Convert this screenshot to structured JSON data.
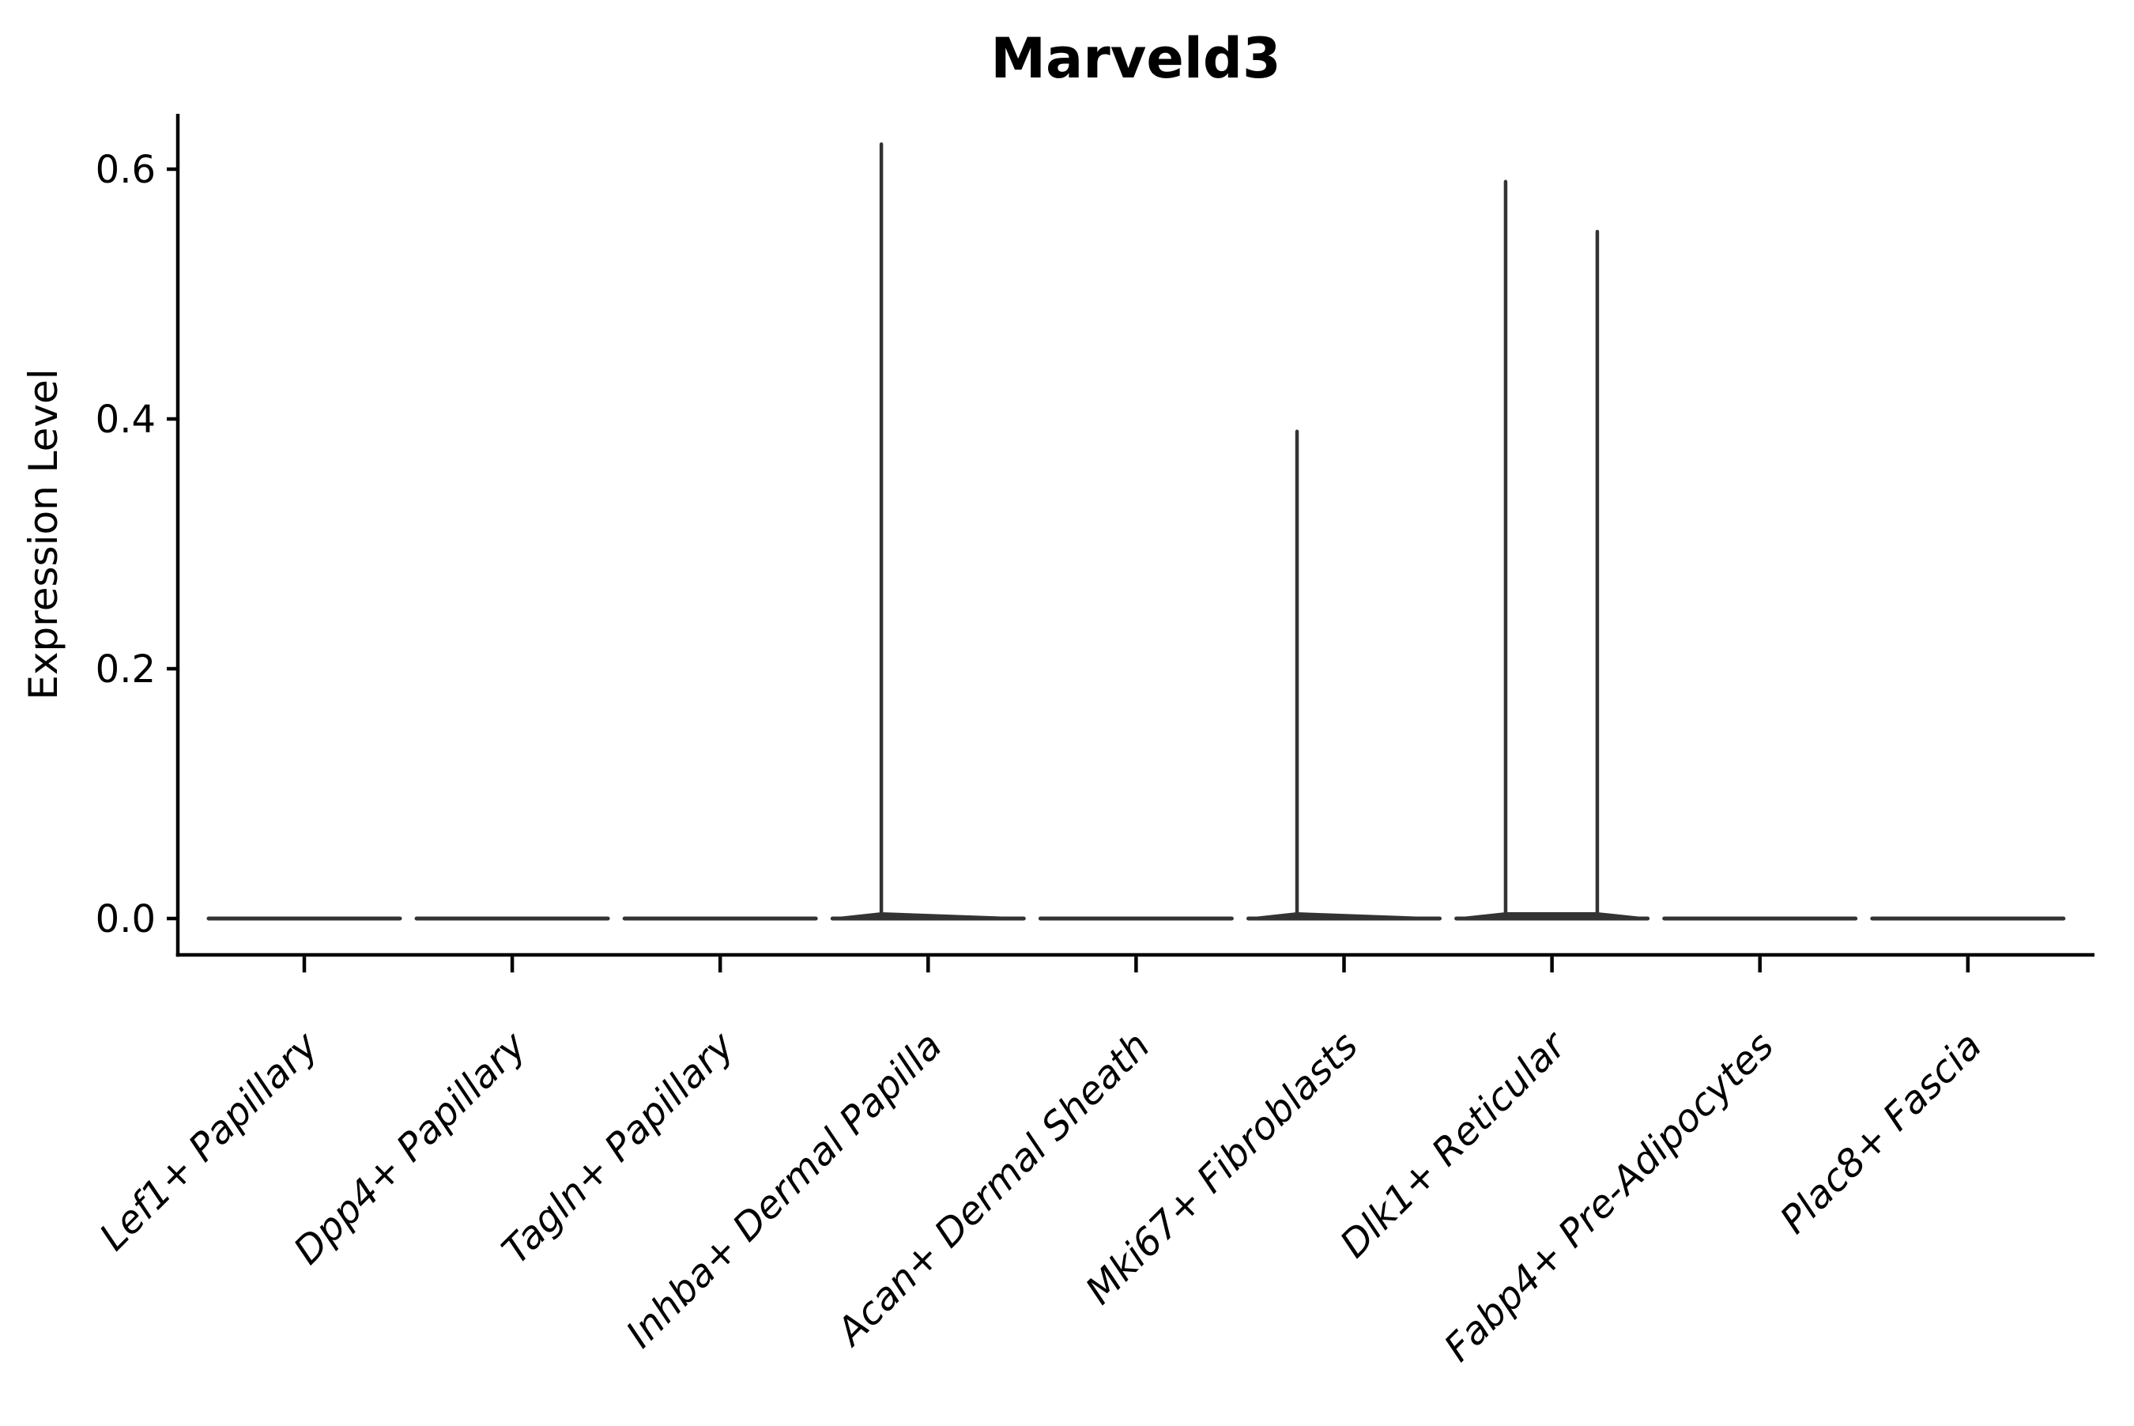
{
  "title": "Marveld3",
  "axes": {
    "ylabel": "Expression Level",
    "xlabel": ""
  },
  "chart_data": {
    "type": "violin",
    "title": "Marveld3",
    "ylabel": "Expression Level",
    "xlabel": "",
    "ylim": [
      0,
      0.64
    ],
    "yticks": [
      0.0,
      0.2,
      0.4,
      0.6
    ],
    "grid": false,
    "legend": null,
    "x_tick_rotation_deg": 45,
    "categories": [
      "Lef1+ Papillary",
      "Dpp4+ Papillary",
      "Tagln+ Papillary",
      "Inhba+ Dermal Papilla",
      "Acan+ Dermal Sheath",
      "Mki67+ Fibroblasts",
      "Dlk1+ Reticular",
      "Fabp4+ Pre-Adipocytes",
      "Plac8+ Fascia"
    ],
    "violins": [
      {
        "category": "Lef1+ Papillary",
        "baseline_value": 0.0,
        "spikes": []
      },
      {
        "category": "Dpp4+ Papillary",
        "baseline_value": 0.0,
        "spikes": []
      },
      {
        "category": "Tagln+ Papillary",
        "baseline_value": 0.0,
        "spikes": []
      },
      {
        "category": "Inhba+ Dermal Papilla",
        "baseline_value": 0.0,
        "spikes": [
          {
            "value": 0.62,
            "x_offset_frac": -0.225
          }
        ]
      },
      {
        "category": "Acan+ Dermal Sheath",
        "baseline_value": 0.0,
        "spikes": []
      },
      {
        "category": "Mki67+ Fibroblasts",
        "baseline_value": 0.0,
        "spikes": [
          {
            "value": 0.39,
            "x_offset_frac": -0.226
          }
        ]
      },
      {
        "category": "Dlk1+ Reticular",
        "baseline_value": 0.0,
        "spikes": [
          {
            "value": 0.59,
            "x_offset_frac": -0.223
          },
          {
            "value": 0.55,
            "x_offset_frac": 0.218
          }
        ]
      },
      {
        "category": "Fabp4+ Pre-Adipocytes",
        "baseline_value": 0.0,
        "spikes": []
      },
      {
        "category": "Plac8+ Fascia",
        "baseline_value": 0.0,
        "spikes": []
      }
    ],
    "colors": {
      "violin": "#333333",
      "axis": "#000000",
      "text": "#000000",
      "background": "#ffffff"
    }
  }
}
